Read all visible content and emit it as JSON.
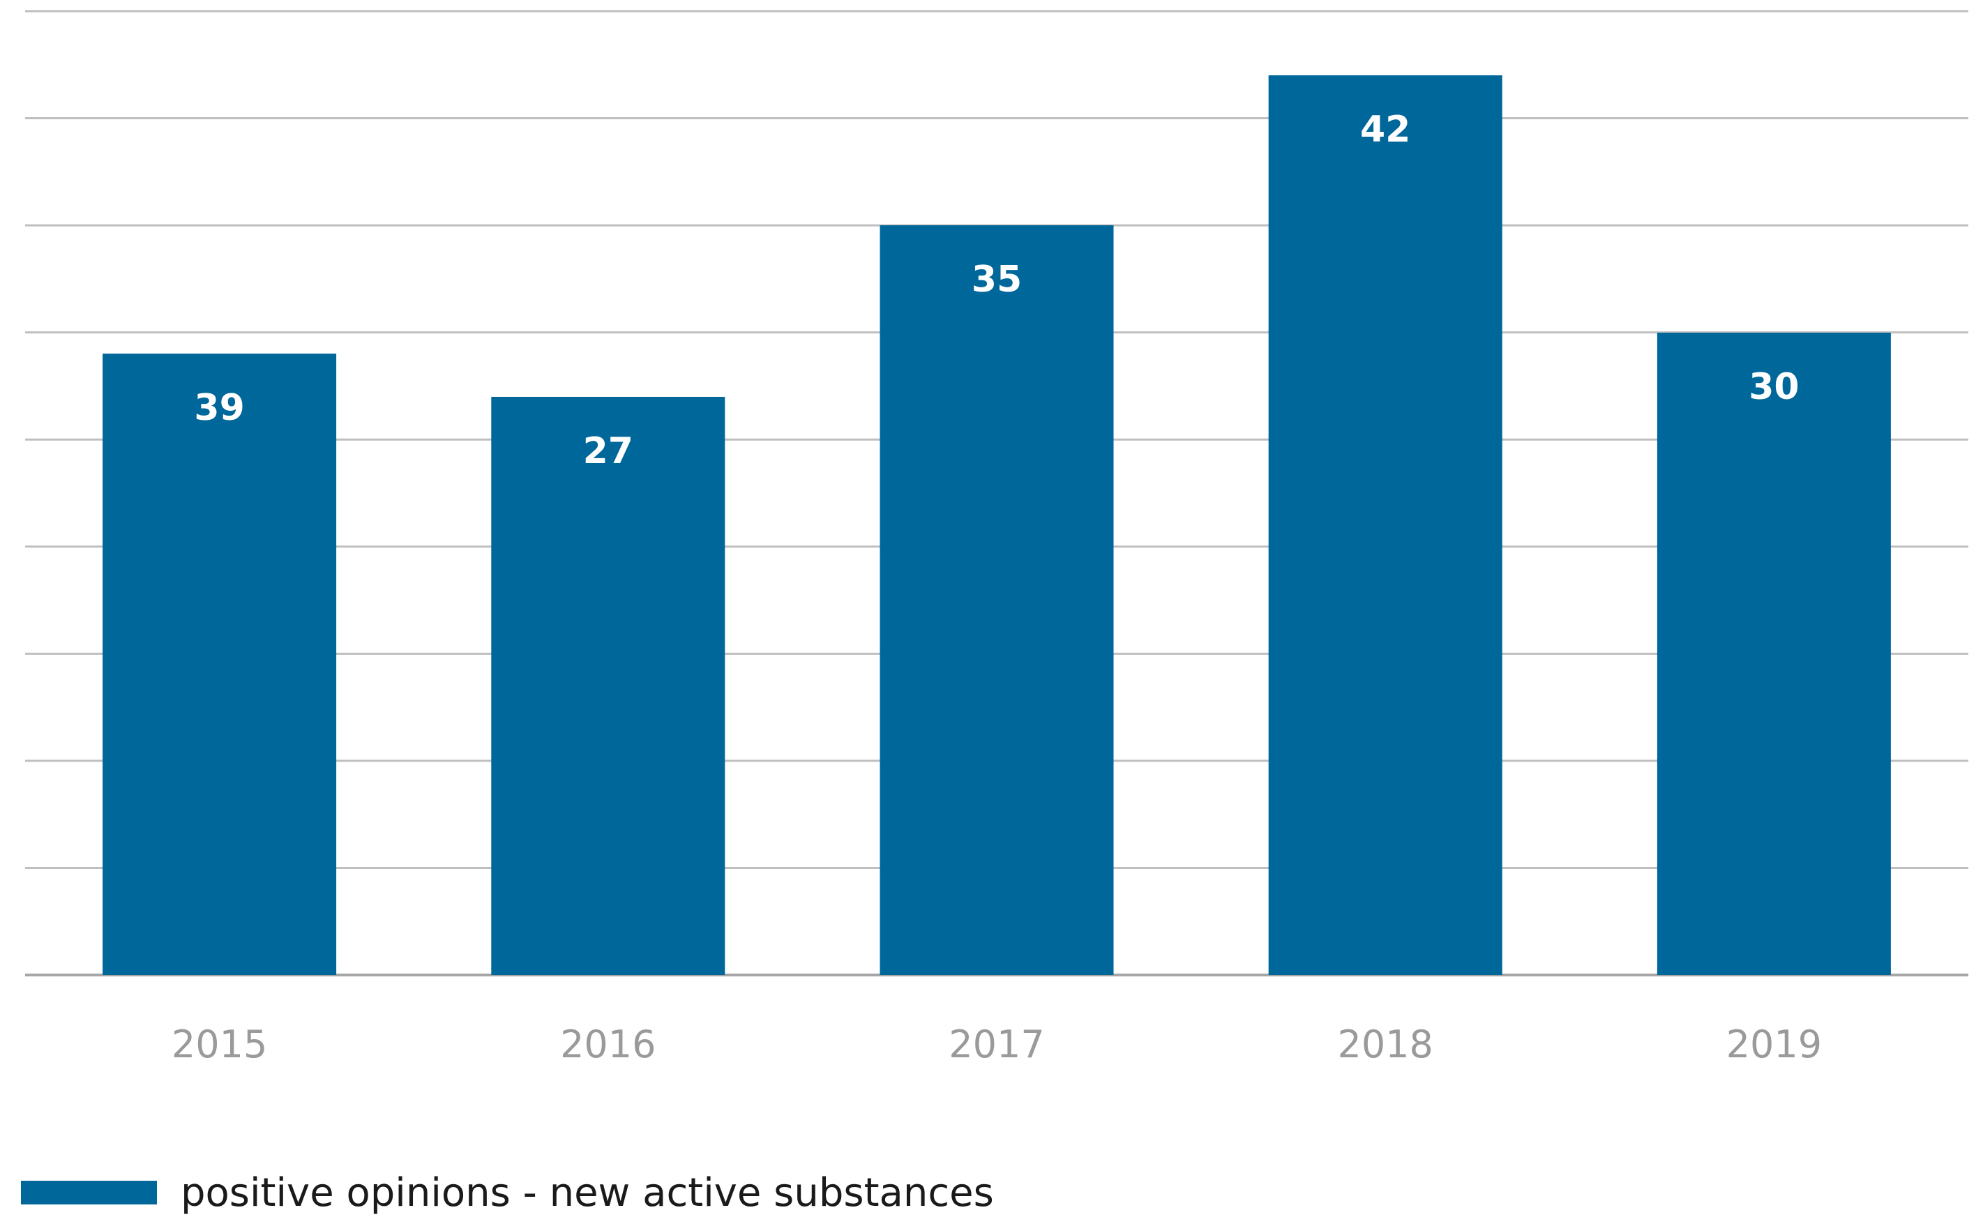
{
  "chart_data": {
    "type": "bar",
    "categories": [
      "2015",
      "2016",
      "2017",
      "2018",
      "2019"
    ],
    "series": [
      {
        "name": "positive opinions - new active substances",
        "values": [
          39,
          27,
          35,
          42,
          30
        ],
        "color": "#00679a"
      }
    ],
    "legend_position": "bottom-left",
    "grid": true
  },
  "legend": {
    "label": "positive opinions - new active substances",
    "color": "#00679a"
  }
}
